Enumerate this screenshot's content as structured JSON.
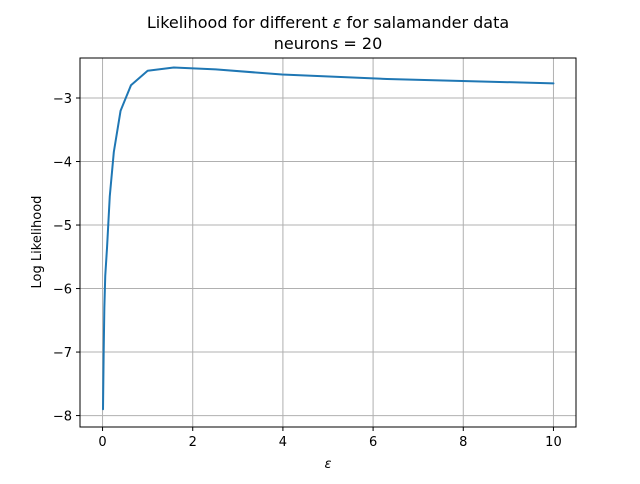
{
  "chart_data": {
    "type": "line",
    "title_prefix": "Likelihood for different ",
    "title_symbol": "ε",
    "title_suffix": " for salamander data",
    "subtitle": "neurons = 20",
    "xlabel": "ε",
    "ylabel": "Log Likelihood",
    "xlim": [
      -0.5,
      10.5
    ],
    "ylim": [
      -8.18,
      -2.37
    ],
    "xticks": [
      0,
      2,
      4,
      6,
      8,
      10
    ],
    "xtick_labels": [
      "0",
      "2",
      "4",
      "6",
      "8",
      "10"
    ],
    "yticks": [
      -8,
      -7,
      -6,
      -5,
      -4,
      -3
    ],
    "ytick_labels": [
      "−8",
      "−7",
      "−6",
      "−5",
      "−4",
      "−3"
    ],
    "grid": true,
    "series": [
      {
        "color": "#1f77b4",
        "x": [
          0.01,
          0.025,
          0.04,
          0.06,
          0.1,
          0.16,
          0.25,
          0.4,
          0.63,
          1.0,
          1.58,
          2.51,
          3.98,
          6.31,
          10.0
        ],
        "y": [
          -7.9,
          -7.0,
          -6.3,
          -5.8,
          -5.35,
          -4.55,
          -3.85,
          -3.2,
          -2.8,
          -2.57,
          -2.52,
          -2.55,
          -2.63,
          -2.7,
          -2.77
        ]
      }
    ]
  }
}
